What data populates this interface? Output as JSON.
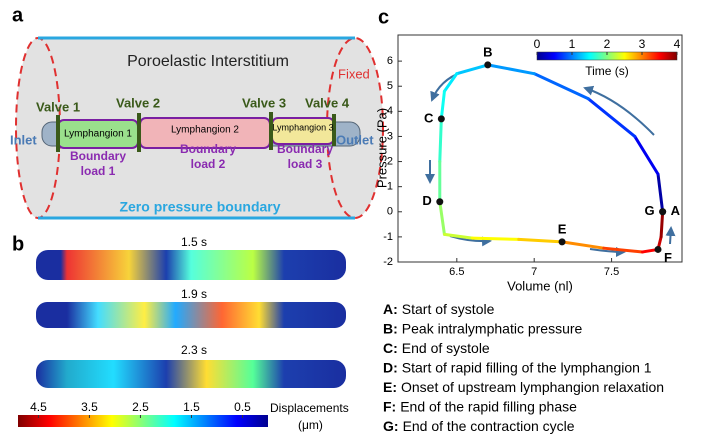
{
  "panel_labels": [
    "a",
    "b",
    "c"
  ],
  "panel_a": {
    "title": "Poroelastic Interstitium",
    "fixed": "Fixed",
    "inlet": "Inlet",
    "outlet": "Outlet",
    "valves": [
      "Valve 1",
      "Valve 2",
      "Valve 3",
      "Valve 4"
    ],
    "lymphangions": [
      "Lymphangion 1",
      "Lymphangion 2",
      "Lymphangion 3"
    ],
    "boundary_loads": [
      [
        "Boundary",
        "load 1"
      ],
      [
        "Boundary",
        "load 2"
      ],
      [
        "Boundary",
        "load 3"
      ]
    ],
    "zero_pressure": "Zero pressure boundary"
  },
  "panel_b": {
    "times": [
      "1.5 s",
      "1.9 s",
      "2.3 s"
    ],
    "colorbar": {
      "ticks": [
        4.5,
        3.5,
        2.5,
        1.5,
        0.5
      ],
      "lim": [
        4.9,
        0
      ],
      "label": [
        "Displacements",
        "(μm)"
      ]
    }
  },
  "chart_data": {
    "type": "line",
    "xlabel": "Volume (nl)",
    "ylabel": "Pressure (Pa)",
    "x": [
      7.83,
      7.8,
      7.65,
      7.35,
      7.0,
      6.7,
      6.5,
      6.42,
      6.4,
      6.39,
      6.39,
      6.42,
      6.6,
      6.9,
      7.18,
      7.45,
      7.7,
      7.8,
      7.82,
      7.83
    ],
    "series": [
      {
        "values": [
          0,
          1.5,
          3,
          4.5,
          5.5,
          5.85,
          5.5,
          4.8,
          3.7,
          2,
          0.4,
          -0.9,
          -1.05,
          -1.1,
          -1.2,
          -1.45,
          -1.6,
          -1.5,
          -1.0,
          0
        ],
        "time": [
          0,
          0.3,
          0.6,
          0.8,
          1.0,
          1.2,
          1.35,
          1.5,
          1.6,
          1.8,
          2.0,
          2.2,
          2.4,
          2.6,
          2.8,
          3.1,
          3.4,
          3.6,
          3.8,
          4.0
        ]
      }
    ],
    "points": [
      {
        "label": "A",
        "x": 7.83,
        "y": 0
      },
      {
        "label": "B",
        "x": 6.7,
        "y": 5.85
      },
      {
        "label": "C",
        "x": 6.4,
        "y": 3.7
      },
      {
        "label": "D",
        "x": 6.39,
        "y": 0.4
      },
      {
        "label": "E",
        "x": 7.18,
        "y": -1.2
      },
      {
        "label": "F",
        "x": 7.8,
        "y": -1.5
      },
      {
        "label": "G",
        "x": 7.83,
        "y": 0
      }
    ],
    "xlim": [
      6.12,
      7.955
    ],
    "ylim": [
      -2,
      7.04
    ],
    "xticks": [
      6.5,
      7,
      7.5
    ],
    "yticks": [
      -2,
      -1,
      0,
      1,
      2,
      3,
      4,
      5,
      6
    ],
    "colorbar": {
      "label": "Time (s)",
      "ticks": [
        0,
        1,
        2,
        3,
        4
      ],
      "lim": [
        0,
        4
      ]
    }
  },
  "legend": [
    {
      "key": "A:",
      "text": "Start of systole"
    },
    {
      "key": "B:",
      "text": "Peak intralymphatic pressure"
    },
    {
      "key": "C:",
      "text": "End of systole"
    },
    {
      "key": "D:",
      "text": "Start of rapid filling of the lymphangion 1"
    },
    {
      "key": "E:",
      "text": "Onset of upstream lymphangion relaxation"
    },
    {
      "key": "F:",
      "text": "End of the rapid filling phase"
    },
    {
      "key": "G:",
      "text": "End of the contraction cycle"
    }
  ]
}
